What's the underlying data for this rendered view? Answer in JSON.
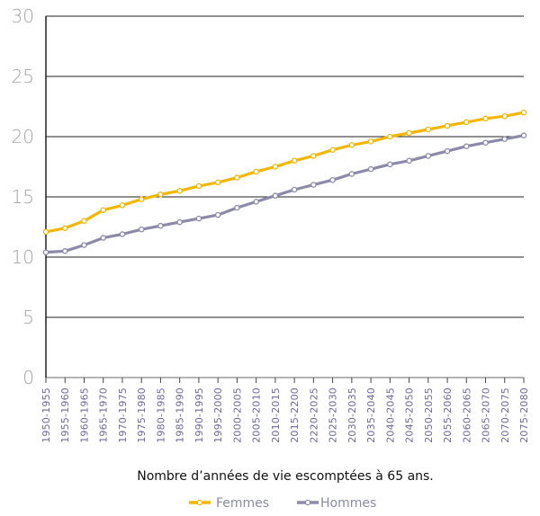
{
  "chart_data": {
    "type": "line",
    "xlabel": "Nombre d’années de vie escomptées à 65 ans.",
    "ylabel": "",
    "ylim": [
      0,
      30
    ],
    "yticks": [
      0,
      5,
      10,
      15,
      20,
      25,
      30
    ],
    "grid": true,
    "legend_position": "bottom",
    "categories": [
      "1950-1955",
      "1955-1960",
      "1960-1965",
      "1965-1970",
      "1970-1975",
      "1975-1980",
      "1980-1985",
      "1985-1990",
      "1990-1995",
      "1995-2000",
      "2000-2005",
      "2005-2010",
      "2010-2015",
      "2015-2200",
      "2220-2025",
      "2025-2030",
      "2030-2035",
      "2035-2040",
      "2040-2045",
      "2045-2050",
      "2050-2055",
      "2055-2060",
      "2060-2065",
      "2065-2070",
      "2070-2075",
      "2075-2080"
    ],
    "series": [
      {
        "name": "Femmes",
        "color": "#f2b705",
        "values": [
          12.1,
          12.4,
          13.0,
          13.9,
          14.3,
          14.8,
          15.2,
          15.5,
          15.9,
          16.2,
          16.6,
          17.1,
          17.5,
          18.0,
          18.4,
          18.9,
          19.3,
          19.6,
          20.0,
          20.3,
          20.6,
          20.9,
          21.2,
          21.5,
          21.7,
          22.0
        ]
      },
      {
        "name": "Hommes",
        "color": "#8b8aa8",
        "values": [
          10.4,
          10.5,
          11.0,
          11.6,
          11.9,
          12.3,
          12.6,
          12.9,
          13.2,
          13.5,
          14.1,
          14.6,
          15.1,
          15.6,
          16.0,
          16.4,
          16.9,
          17.3,
          17.7,
          18.0,
          18.4,
          18.8,
          19.2,
          19.5,
          19.8,
          20.1
        ]
      }
    ]
  }
}
